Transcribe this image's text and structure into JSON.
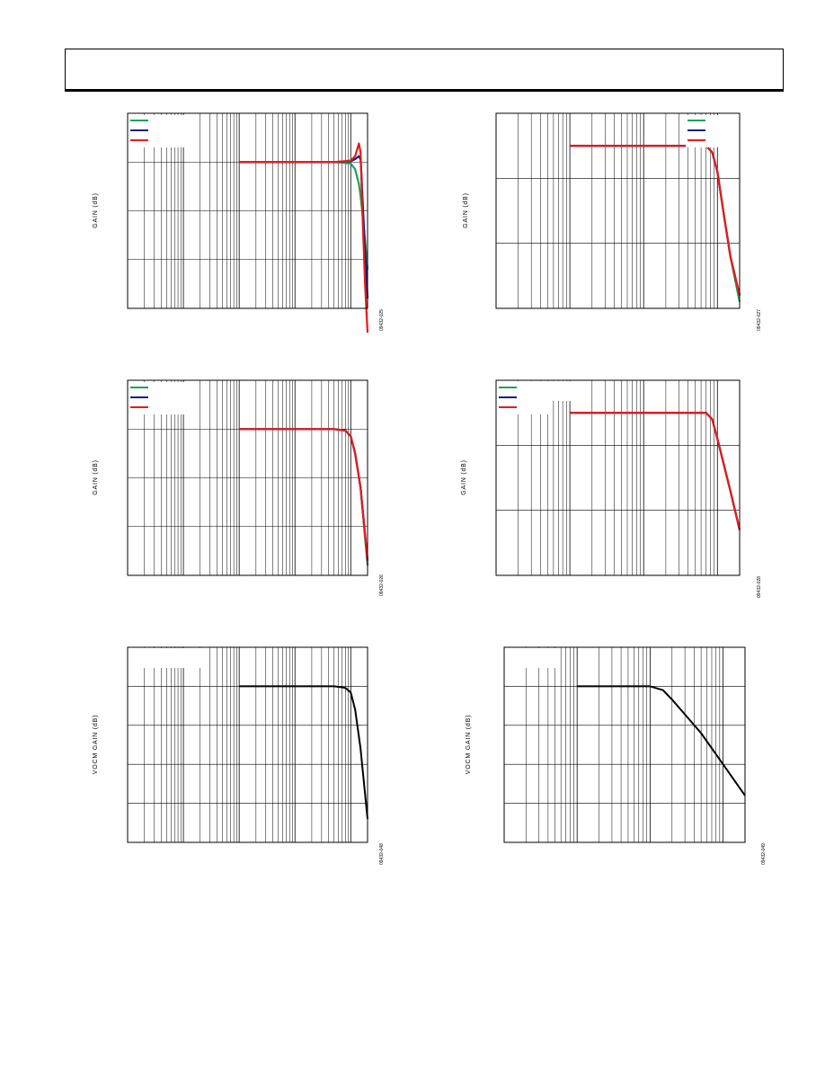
{
  "colors": {
    "green": "#1aa35a",
    "blue": "#10207a",
    "red": "#e8191c",
    "black": "#000000"
  },
  "chart_data": [
    {
      "type": "line",
      "scale_x": "log",
      "ylabel": "GAIN (dB)",
      "figure_code": "09432-025",
      "grid": true,
      "legend": "top-left",
      "x": [
        1,
        10,
        50,
        100,
        120,
        140,
        150,
        155,
        160,
        170,
        180,
        200
      ],
      "series": [
        {
          "color": "green",
          "values": [
            0,
            0,
            0,
            -0.3,
            -1.5,
            -4.5,
            -7,
            -8.5,
            -10,
            -13,
            -16,
            -22
          ]
        },
        {
          "color": "blue",
          "values": [
            0,
            0,
            0,
            0.2,
            0.6,
            1.2,
            0.5,
            -2,
            -6,
            -12,
            -18,
            -28
          ]
        },
        {
          "color": "red",
          "values": [
            0,
            0,
            0,
            0.3,
            1.2,
            3.8,
            2,
            -3,
            -9,
            -17,
            -25,
            -35
          ]
        }
      ]
    },
    {
      "type": "line",
      "scale_x": "log",
      "ylabel": "GAIN (dB)",
      "figure_code": "09432-027",
      "grid": true,
      "legend": "top-right",
      "x": [
        1,
        10,
        70,
        85,
        100,
        120,
        150,
        200
      ],
      "series": [
        {
          "color": "green",
          "values": [
            0,
            0,
            0,
            -1,
            -4,
            -10,
            -17,
            -24
          ]
        },
        {
          "color": "blue",
          "values": [
            0,
            0,
            0,
            -1,
            -4,
            -10,
            -17,
            -23
          ]
        },
        {
          "color": "red",
          "values": [
            0,
            0,
            0,
            -1,
            -4,
            -10,
            -17,
            -23
          ]
        }
      ]
    },
    {
      "type": "line",
      "scale_x": "log",
      "ylabel": "GAIN (dB)",
      "figure_code": "09432-026",
      "grid": true,
      "legend": "top-left",
      "x": [
        1,
        10,
        50,
        80,
        100,
        120,
        150,
        200
      ],
      "series": [
        {
          "color": "green",
          "values": [
            0,
            0,
            0,
            -0.3,
            -1.5,
            -5,
            -12,
            -28
          ]
        },
        {
          "color": "blue",
          "values": [
            0,
            0,
            0,
            -0.3,
            -1.5,
            -5,
            -12,
            -27
          ]
        },
        {
          "color": "red",
          "values": [
            0,
            0,
            0,
            -0.3,
            -1.5,
            -5,
            -12,
            -27
          ]
        }
      ]
    },
    {
      "type": "line",
      "scale_x": "log",
      "ylabel": "GAIN (dB)",
      "figure_code": "09432-028",
      "grid": true,
      "legend": "top-left",
      "x": [
        1,
        10,
        70,
        85,
        100,
        150,
        200
      ],
      "series": [
        {
          "color": "green",
          "values": [
            0,
            0,
            0,
            -1,
            -4,
            -12,
            -18
          ]
        },
        {
          "color": "blue",
          "values": [
            0,
            0,
            0,
            -1,
            -4,
            -12,
            -18
          ]
        },
        {
          "color": "red",
          "values": [
            0,
            0,
            0,
            -1,
            -4,
            -12,
            -18
          ]
        }
      ]
    },
    {
      "type": "line",
      "scale_x": "log",
      "ylabel": "VOCM GAIN (dB)",
      "figure_code": "09432-048",
      "grid": true,
      "x": [
        1,
        10,
        50,
        80,
        100,
        120,
        150,
        200
      ],
      "series": [
        {
          "color": "black",
          "values": [
            0,
            0,
            0,
            -0.2,
            -0.8,
            -3,
            -8,
            -17
          ]
        }
      ]
    },
    {
      "type": "line",
      "scale_x": "log",
      "ylabel": "VOCM GAIN (dB)",
      "figure_code": "09432-049",
      "grid": true,
      "x": [
        1,
        10,
        15,
        20,
        30,
        50,
        100,
        200
      ],
      "series": [
        {
          "color": "black",
          "values": [
            0,
            0,
            -0.5,
            -1.7,
            -3.6,
            -6,
            -10,
            -14
          ]
        }
      ]
    }
  ]
}
